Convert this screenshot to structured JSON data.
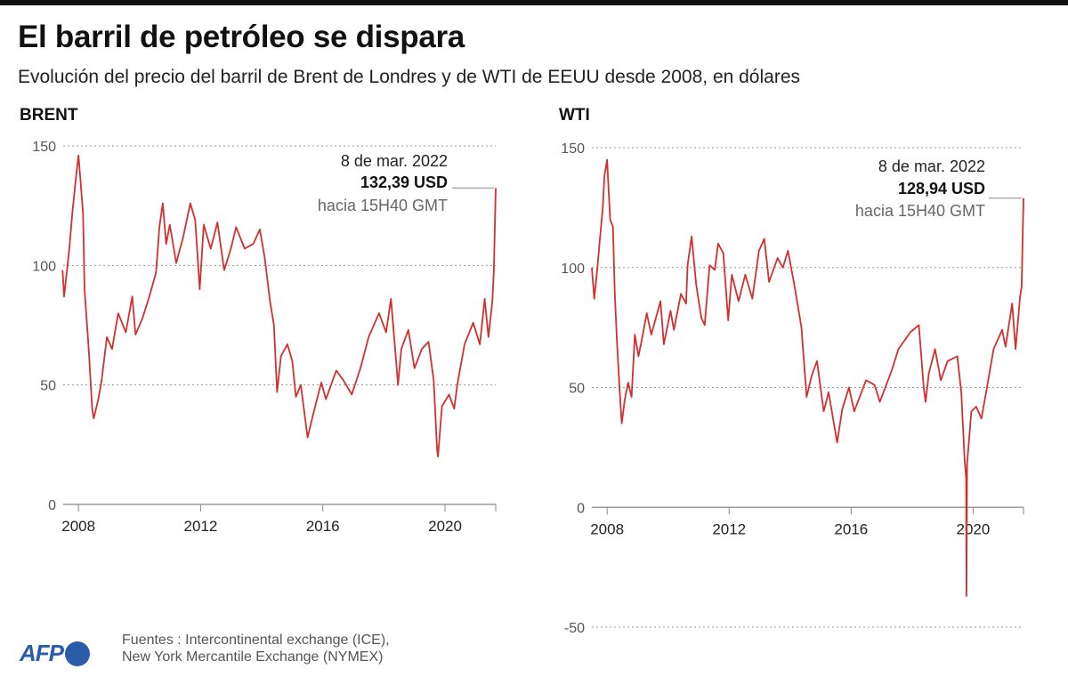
{
  "header": {
    "title": "El barril de petróleo se dispara",
    "subtitle": "Evolución del precio del barril de Brent de Londres y de WTI de EEUU desde 2008, en dólares"
  },
  "footer": {
    "logo": "AFP",
    "sources_line1": "Fuentes : Intercontinental exchange (ICE),",
    "sources_line2": "New York Mercantile Exchange (NYMEX)"
  },
  "colors": {
    "line": "#d32f2f",
    "grid": "#999999",
    "logo": "#2a5caa"
  },
  "chart_data": [
    {
      "type": "line",
      "title": "BRENT",
      "xlim": [
        2007.5,
        2021.66
      ],
      "ylim": [
        0,
        150
      ],
      "xticks": [
        2008,
        2012,
        2016,
        2020
      ],
      "xtick_labels": [
        "2008",
        "2012",
        "2016",
        "2020"
      ],
      "yticks": [
        0,
        50,
        100,
        150
      ],
      "ytick_labels": [
        "0",
        "50",
        "100",
        "150"
      ],
      "grid": "horizontal dotted",
      "annotation": {
        "date": "8 de mar. 2022",
        "value": "132,39 USD",
        "time": "hacia 15H40 GMT"
      },
      "x": [
        2007.48,
        2007.53,
        2007.7,
        2007.8,
        2007.92,
        2008.0,
        2008.15,
        2008.2,
        2008.33,
        2008.45,
        2008.5,
        2008.65,
        2008.76,
        2008.93,
        2009.1,
        2009.3,
        2009.55,
        2009.76,
        2009.87,
        2010.1,
        2010.32,
        2010.54,
        2010.65,
        2010.76,
        2010.87,
        2010.99,
        2011.2,
        2011.43,
        2011.66,
        2011.82,
        2011.97,
        2012.1,
        2012.33,
        2012.55,
        2012.77,
        2012.99,
        2013.16,
        2013.44,
        2013.72,
        2013.94,
        2014.1,
        2014.27,
        2014.4,
        2014.5,
        2014.63,
        2014.84,
        2015.0,
        2015.12,
        2015.28,
        2015.5,
        2015.67,
        2015.95,
        2016.1,
        2016.44,
        2016.67,
        2016.95,
        2017.23,
        2017.5,
        2017.84,
        2018.07,
        2018.23,
        2018.4,
        2018.46,
        2018.57,
        2018.8,
        2019.0,
        2019.24,
        2019.46,
        2019.63,
        2019.74,
        2019.77,
        2019.9,
        2020.13,
        2020.3,
        2020.4,
        2020.64,
        2020.92,
        2021.14,
        2021.3,
        2021.42,
        2021.55,
        2021.6,
        2021.66
      ],
      "y": [
        98,
        87,
        107,
        122,
        137,
        146,
        122,
        90,
        66,
        40,
        36,
        44,
        52,
        70,
        65,
        80,
        72,
        87,
        71,
        78,
        87,
        97,
        116,
        126,
        109,
        117,
        101,
        112,
        126,
        119,
        90,
        117,
        107,
        118,
        98,
        107,
        116,
        107,
        109,
        115,
        103,
        85,
        75,
        47,
        62,
        67,
        60,
        45,
        50,
        28,
        37,
        51,
        44,
        56,
        52,
        46,
        57,
        70,
        80,
        72,
        86,
        60,
        50,
        65,
        73,
        57,
        65,
        68,
        52,
        23,
        20,
        41,
        46,
        40,
        50,
        67,
        76,
        67,
        86,
        70,
        85,
        98,
        132.39
      ]
    },
    {
      "type": "line",
      "title": "WTI",
      "xlim": [
        2007.5,
        2021.65
      ],
      "ylim": [
        -50,
        150
      ],
      "xticks": [
        2008,
        2012,
        2016,
        2020
      ],
      "xtick_labels": [
        "2008",
        "2012",
        "2016",
        "2020"
      ],
      "yticks": [
        -50,
        0,
        50,
        100,
        150
      ],
      "ytick_labels": [
        "-50",
        "0",
        "50",
        "100",
        "150"
      ],
      "grid": "horizontal dotted",
      "annotation": {
        "date": "8 de mar. 2022",
        "value": "128,94 USD",
        "time": "hacia 15H40 GMT"
      },
      "x": [
        2007.5,
        2007.58,
        2007.69,
        2007.75,
        2007.86,
        2007.91,
        2008.0,
        2008.1,
        2008.19,
        2008.25,
        2008.32,
        2008.41,
        2008.48,
        2008.58,
        2008.69,
        2008.8,
        2008.91,
        2009.03,
        2009.14,
        2009.3,
        2009.45,
        2009.75,
        2009.86,
        2010.08,
        2010.19,
        2010.42,
        2010.59,
        2010.64,
        2010.77,
        2010.92,
        2011.09,
        2011.2,
        2011.36,
        2011.53,
        2011.64,
        2011.81,
        2011.97,
        2012.09,
        2012.31,
        2012.53,
        2012.76,
        2012.98,
        2013.15,
        2013.31,
        2013.59,
        2013.76,
        2013.93,
        2014.15,
        2014.37,
        2014.54,
        2014.71,
        2014.88,
        2015.1,
        2015.26,
        2015.54,
        2015.71,
        2015.93,
        2016.1,
        2016.49,
        2016.77,
        2016.94,
        2017.33,
        2017.55,
        2017.94,
        2018.22,
        2018.38,
        2018.44,
        2018.55,
        2018.75,
        2018.94,
        2019.16,
        2019.48,
        2019.61,
        2019.72,
        2019.77,
        2019.78,
        2019.8,
        2019.94,
        2020.1,
        2020.27,
        2020.44,
        2020.67,
        2020.95,
        2021.06,
        2021.28,
        2021.39,
        2021.54,
        2021.59,
        2021.65
      ],
      "y": [
        100,
        87,
        101,
        110,
        125,
        138,
        145,
        120,
        117,
        90,
        70,
        49,
        35,
        45,
        52,
        46,
        72,
        63,
        70,
        81,
        72,
        86,
        68,
        82,
        74,
        89,
        85,
        101,
        113,
        93,
        79,
        76,
        101,
        99,
        110,
        106,
        78,
        97,
        86,
        97,
        87,
        107,
        112,
        94,
        104,
        100,
        107,
        92,
        75,
        46,
        55,
        61,
        40,
        48,
        27,
        41,
        50,
        40,
        53,
        51,
        44,
        57,
        66,
        73,
        76,
        50,
        44,
        56,
        66,
        53,
        61,
        63,
        48,
        20,
        12,
        -37,
        18,
        40,
        42,
        37,
        49,
        66,
        74,
        67,
        85,
        66,
        88,
        92,
        128.94
      ]
    }
  ]
}
